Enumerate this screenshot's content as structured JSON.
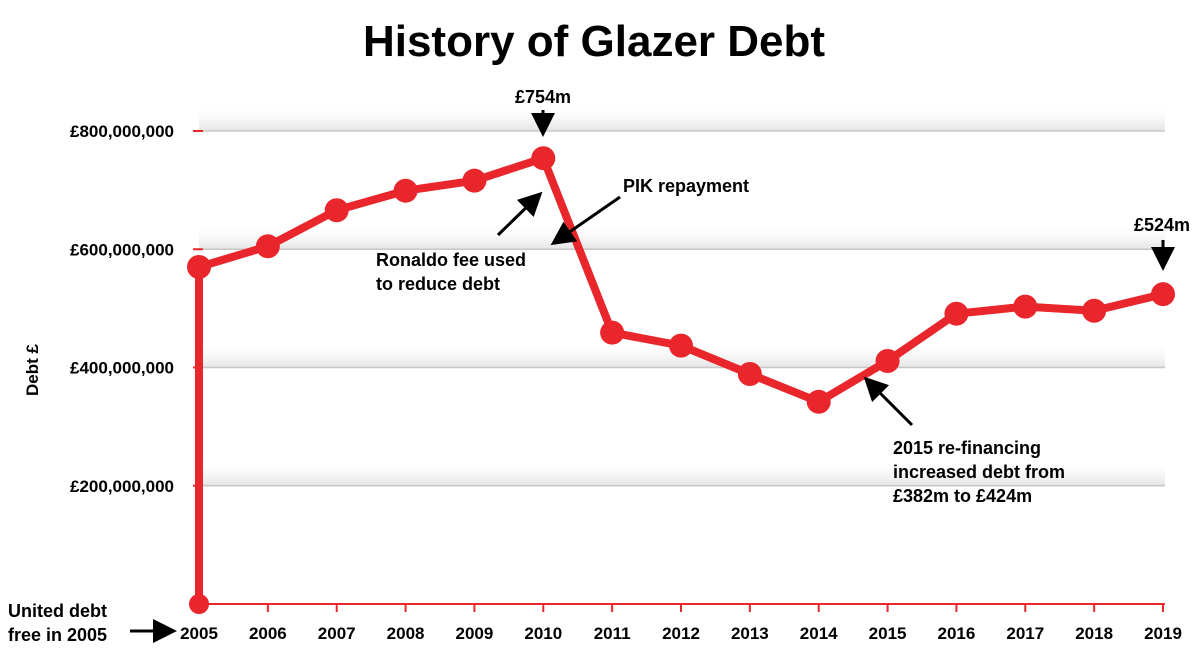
{
  "chart_data": {
    "type": "line",
    "title": "History of Glazer Debt",
    "ylabel": "Debt £",
    "xlabel": "",
    "ylim": [
      0,
      800000000
    ],
    "yticks": [
      {
        "value": 800000000,
        "label": "£800,000,000"
      },
      {
        "value": 600000000,
        "label": "£600,000,000"
      },
      {
        "value": 400000000,
        "label": "£400,000,000"
      },
      {
        "value": 200000000,
        "label": "£200,000,000"
      }
    ],
    "x_labels": [
      "2005",
      "2006",
      "2007",
      "2008",
      "2009",
      "2010",
      "2011",
      "2012",
      "2013",
      "2014",
      "2015",
      "2016",
      "2017",
      "2018",
      "2019"
    ],
    "grid": true,
    "series": [
      {
        "color": "#e8262b",
        "points": [
          {
            "x": "2005",
            "y": 0
          },
          {
            "x": "2005",
            "y": 570000000
          },
          {
            "x": "2006",
            "y": 605000000
          },
          {
            "x": "2007",
            "y": 666000000
          },
          {
            "x": "2008",
            "y": 699000000
          },
          {
            "x": "2009",
            "y": 716000000
          },
          {
            "x": "2010",
            "y": 754000000
          },
          {
            "x": "2011",
            "y": 459000000
          },
          {
            "x": "2012",
            "y": 437000000
          },
          {
            "x": "2013",
            "y": 389000000
          },
          {
            "x": "2014",
            "y": 342000000
          },
          {
            "x": "2015",
            "y": 411000000
          },
          {
            "x": "2016",
            "y": 491000000
          },
          {
            "x": "2017",
            "y": 503000000
          },
          {
            "x": "2018",
            "y": 496000000
          },
          {
            "x": "2019",
            "y": 524000000
          }
        ]
      }
    ],
    "annotations": {
      "peak_label": "£754m",
      "end_label": "£524m",
      "pik": "PIK repayment",
      "ronaldo": [
        "Ronaldo fee used",
        "to reduce debt"
      ],
      "refinance": [
        "2015 re-financing",
        "increased debt from",
        "£382m to £424m"
      ],
      "debt_free": [
        "United debt",
        "free in 2005"
      ]
    }
  }
}
